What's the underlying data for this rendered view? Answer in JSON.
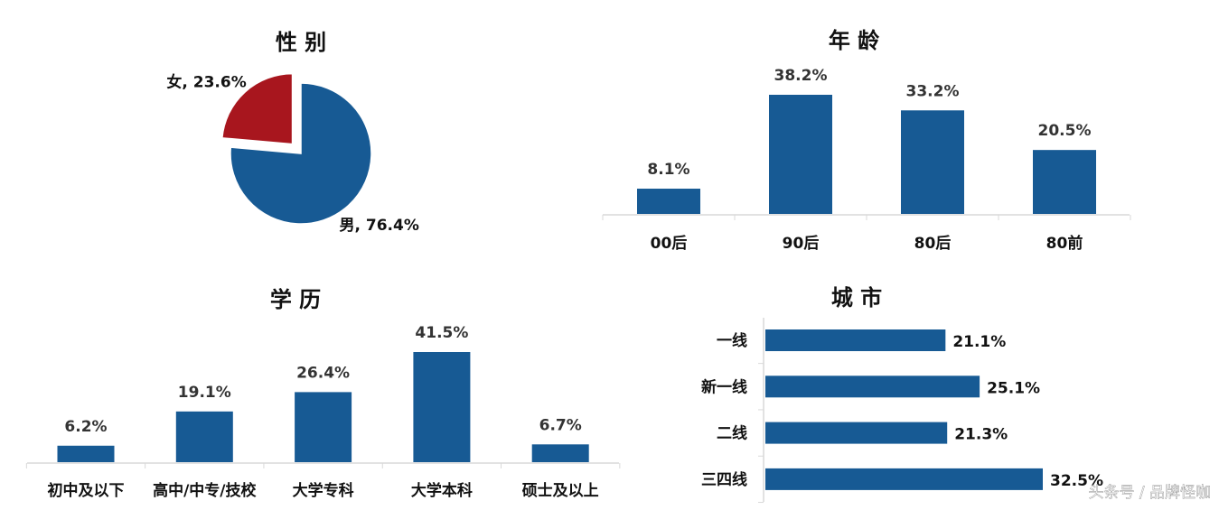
{
  "chart_data": [
    {
      "type": "pie",
      "title": "性 别",
      "values": [
        76.4,
        23.6
      ],
      "value_labels": [
        "男, 76.4%",
        "女, 23.6%"
      ],
      "colors": [
        "#175a94",
        "#a8161e"
      ],
      "exploded": [
        false,
        true
      ]
    },
    {
      "type": "bar",
      "title": "年 龄",
      "categories": [
        "00后",
        "90后",
        "80后",
        "80前"
      ],
      "values": [
        8.1,
        38.2,
        33.2,
        20.5
      ],
      "value_labels": [
        "8.1%",
        "38.2%",
        "33.2%",
        "20.5%"
      ],
      "color": "#175a94"
    },
    {
      "type": "bar",
      "title": "学 历",
      "categories": [
        "初中及以下",
        "高中/中专/技校",
        "大学专科",
        "大学本科",
        "硕士及以上"
      ],
      "values": [
        6.2,
        19.1,
        26.4,
        41.5,
        6.7
      ],
      "value_labels": [
        "6.2%",
        "19.1%",
        "26.4%",
        "41.5%",
        "6.7%"
      ],
      "color": "#175a94"
    },
    {
      "type": "barh",
      "title": "城 市",
      "categories": [
        "一线",
        "新一线",
        "二线",
        "三四线"
      ],
      "values": [
        21.1,
        25.1,
        21.3,
        32.5
      ],
      "value_labels": [
        "21.1%",
        "25.1%",
        "21.3%",
        "32.5%"
      ],
      "color": "#175a94"
    }
  ],
  "watermark": "头条号 / 品牌怪咖"
}
